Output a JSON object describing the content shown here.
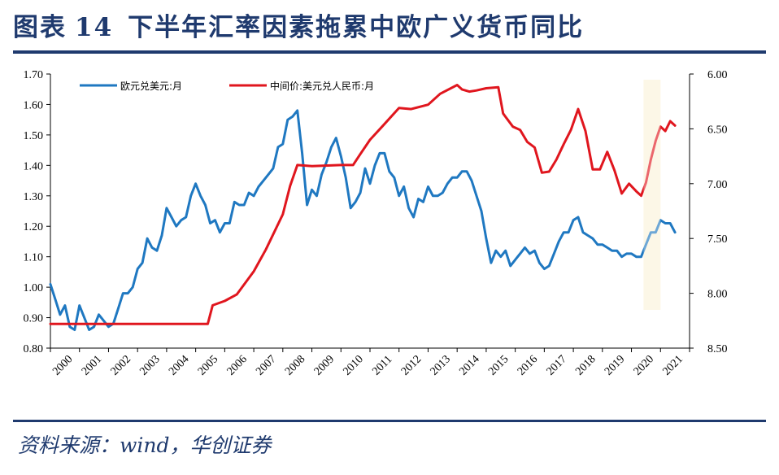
{
  "figure": {
    "label": "图表",
    "number": "14",
    "caption": "下半年汇率因素拖累中欧广义货币同比"
  },
  "source": "资料来源：wind，华创证券",
  "colors": {
    "eur": "#1f78c1",
    "cny": "#e0161e",
    "highlight": "#fbf3da",
    "axis": "#000000"
  },
  "chart_data": {
    "type": "line",
    "x_tick_labels": [
      "2000",
      "2001",
      "2002",
      "2003",
      "2004",
      "2005",
      "2006",
      "2007",
      "2008",
      "2009",
      "2010",
      "2011",
      "2012",
      "2013",
      "2014",
      "2015",
      "2016",
      "2017",
      "2018",
      "2019",
      "2020",
      "2021"
    ],
    "left_axis": {
      "ylim": [
        0.8,
        1.7
      ],
      "tick_labels": [
        "0.80",
        "0.90",
        "1.00",
        "1.10",
        "1.20",
        "1.30",
        "1.40",
        "1.50",
        "1.60",
        "1.70"
      ]
    },
    "right_axis": {
      "ylim": [
        8.5,
        6.0
      ],
      "inverted": true,
      "tick_labels": [
        "6.00",
        "6.50",
        "7.00",
        "7.50",
        "8.00",
        "8.50"
      ]
    },
    "highlight_range": [
      "2020-06",
      "2021-01"
    ],
    "legend_position": "top-left",
    "series": [
      {
        "name": "欧元兑美元:月",
        "axis": "left",
        "color": "#1f78c1",
        "x": [
          "2000-01",
          "2000-03",
          "2000-05",
          "2000-07",
          "2000-09",
          "2000-11",
          "2001-01",
          "2001-03",
          "2001-05",
          "2001-07",
          "2001-09",
          "2001-11",
          "2002-01",
          "2002-03",
          "2002-05",
          "2002-07",
          "2002-09",
          "2002-11",
          "2003-01",
          "2003-03",
          "2003-05",
          "2003-07",
          "2003-09",
          "2003-11",
          "2004-01",
          "2004-03",
          "2004-05",
          "2004-07",
          "2004-09",
          "2004-11",
          "2005-01",
          "2005-03",
          "2005-05",
          "2005-07",
          "2005-09",
          "2005-11",
          "2006-01",
          "2006-03",
          "2006-05",
          "2006-07",
          "2006-09",
          "2006-11",
          "2007-01",
          "2007-03",
          "2007-05",
          "2007-07",
          "2007-09",
          "2007-11",
          "2008-01",
          "2008-03",
          "2008-05",
          "2008-07",
          "2008-09",
          "2008-11",
          "2009-01",
          "2009-03",
          "2009-05",
          "2009-07",
          "2009-09",
          "2009-11",
          "2010-01",
          "2010-03",
          "2010-05",
          "2010-07",
          "2010-09",
          "2010-11",
          "2011-01",
          "2011-03",
          "2011-05",
          "2011-07",
          "2011-09",
          "2011-11",
          "2012-01",
          "2012-03",
          "2012-05",
          "2012-07",
          "2012-09",
          "2012-11",
          "2013-01",
          "2013-03",
          "2013-05",
          "2013-07",
          "2013-09",
          "2013-11",
          "2014-01",
          "2014-03",
          "2014-05",
          "2014-07",
          "2014-09",
          "2014-11",
          "2015-01",
          "2015-03",
          "2015-05",
          "2015-07",
          "2015-09",
          "2015-11",
          "2016-01",
          "2016-03",
          "2016-05",
          "2016-07",
          "2016-09",
          "2016-11",
          "2017-01",
          "2017-03",
          "2017-05",
          "2017-07",
          "2017-09",
          "2017-11",
          "2018-01",
          "2018-03",
          "2018-05",
          "2018-07",
          "2018-09",
          "2018-11",
          "2019-01",
          "2019-03",
          "2019-05",
          "2019-07",
          "2019-09",
          "2019-11",
          "2020-01",
          "2020-03",
          "2020-05",
          "2020-07",
          "2020-09",
          "2020-11",
          "2021-01",
          "2021-03",
          "2021-05",
          "2021-07"
        ],
        "values": [
          1.01,
          0.96,
          0.91,
          0.94,
          0.87,
          0.86,
          0.94,
          0.9,
          0.86,
          0.87,
          0.91,
          0.89,
          0.87,
          0.88,
          0.93,
          0.98,
          0.98,
          1.0,
          1.06,
          1.08,
          1.16,
          1.13,
          1.12,
          1.17,
          1.26,
          1.23,
          1.2,
          1.22,
          1.23,
          1.3,
          1.34,
          1.3,
          1.27,
          1.21,
          1.22,
          1.18,
          1.21,
          1.21,
          1.28,
          1.27,
          1.27,
          1.31,
          1.3,
          1.33,
          1.35,
          1.37,
          1.39,
          1.46,
          1.47,
          1.55,
          1.56,
          1.58,
          1.44,
          1.27,
          1.32,
          1.3,
          1.37,
          1.41,
          1.46,
          1.49,
          1.43,
          1.36,
          1.26,
          1.28,
          1.31,
          1.39,
          1.34,
          1.4,
          1.44,
          1.44,
          1.38,
          1.36,
          1.3,
          1.33,
          1.26,
          1.23,
          1.29,
          1.28,
          1.33,
          1.3,
          1.3,
          1.31,
          1.34,
          1.36,
          1.36,
          1.38,
          1.38,
          1.35,
          1.3,
          1.25,
          1.16,
          1.08,
          1.12,
          1.1,
          1.12,
          1.07,
          1.09,
          1.11,
          1.13,
          1.11,
          1.12,
          1.08,
          1.06,
          1.07,
          1.11,
          1.15,
          1.18,
          1.18,
          1.22,
          1.23,
          1.18,
          1.17,
          1.16,
          1.14,
          1.14,
          1.13,
          1.12,
          1.12,
          1.1,
          1.11,
          1.11,
          1.1,
          1.1,
          1.14,
          1.18,
          1.18,
          1.22,
          1.21,
          1.21,
          1.18
        ]
      },
      {
        "name": "中间价:美元兑人民币:月",
        "axis": "right",
        "color": "#e0161e",
        "x": [
          "2000-01",
          "2003-01",
          "2005-06",
          "2005-08",
          "2006-01",
          "2006-06",
          "2007-01",
          "2007-06",
          "2008-01",
          "2008-04",
          "2008-07",
          "2009-01",
          "2010-01",
          "2010-06",
          "2010-09",
          "2011-01",
          "2011-06",
          "2012-01",
          "2012-06",
          "2013-01",
          "2013-06",
          "2014-01",
          "2014-03",
          "2014-06",
          "2014-09",
          "2015-01",
          "2015-06",
          "2015-08",
          "2015-09",
          "2015-12",
          "2016-03",
          "2016-06",
          "2016-09",
          "2016-12",
          "2017-03",
          "2017-06",
          "2017-09",
          "2017-12",
          "2018-03",
          "2018-06",
          "2018-09",
          "2018-12",
          "2019-03",
          "2019-06",
          "2019-09",
          "2019-12",
          "2020-03",
          "2020-05",
          "2020-07",
          "2020-09",
          "2020-11",
          "2021-01",
          "2021-03",
          "2021-05",
          "2021-07"
        ],
        "values": [
          8.28,
          8.28,
          8.28,
          8.11,
          8.07,
          8.01,
          7.8,
          7.6,
          7.28,
          7.02,
          6.83,
          6.84,
          6.83,
          6.83,
          6.73,
          6.6,
          6.48,
          6.31,
          6.32,
          6.28,
          6.18,
          6.1,
          6.14,
          6.16,
          6.15,
          6.13,
          6.12,
          6.36,
          6.39,
          6.48,
          6.51,
          6.62,
          6.67,
          6.9,
          6.89,
          6.78,
          6.64,
          6.51,
          6.32,
          6.52,
          6.87,
          6.87,
          6.71,
          6.88,
          7.09,
          7.0,
          7.07,
          7.11,
          6.99,
          6.78,
          6.61,
          6.48,
          6.52,
          6.43,
          6.47
        ]
      }
    ]
  }
}
